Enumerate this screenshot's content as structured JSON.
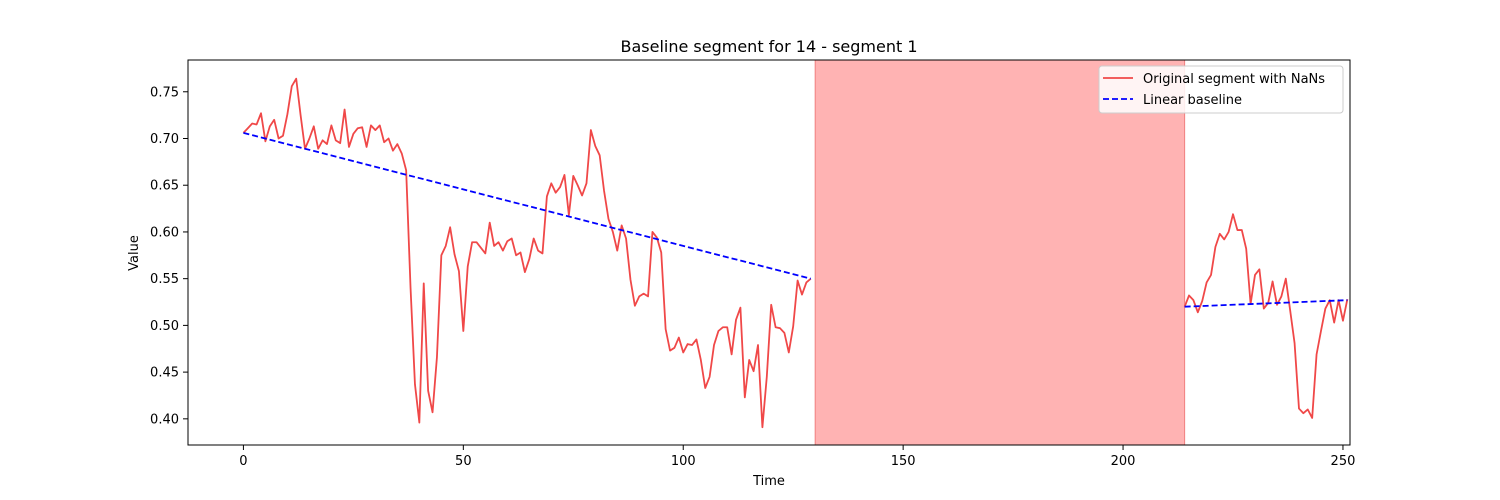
{
  "chart_data": {
    "type": "line",
    "title": "Baseline segment for 14 - segment 1",
    "xlabel": "Time",
    "ylabel": "Value",
    "xlim": [
      -12.6,
      251.6
    ],
    "ylim": [
      0.372,
      0.784
    ],
    "xticks": [
      0,
      50,
      100,
      150,
      200,
      250
    ],
    "yticks": [
      0.4,
      0.45,
      0.5,
      0.55,
      0.6,
      0.65,
      0.7,
      0.75
    ],
    "grid": false,
    "legend_position": "top-right",
    "shaded_region": {
      "x_start": 130,
      "x_end": 214,
      "color": "#ffb3b3"
    },
    "series": [
      {
        "name": "Original segment with NaNs",
        "color": "#f04848",
        "style": "solid",
        "segments": [
          [
            [
              0,
              0.706
            ],
            [
              1,
              0.711
            ],
            [
              2,
              0.716
            ],
            [
              3,
              0.715
            ],
            [
              4,
              0.727
            ],
            [
              5,
              0.697
            ],
            [
              6,
              0.713
            ],
            [
              7,
              0.72
            ],
            [
              8,
              0.7
            ],
            [
              9,
              0.703
            ],
            [
              10,
              0.726
            ],
            [
              11,
              0.756
            ],
            [
              12,
              0.764
            ],
            [
              13,
              0.725
            ],
            [
              14,
              0.689
            ],
            [
              15,
              0.7
            ],
            [
              16,
              0.713
            ],
            [
              17,
              0.689
            ],
            [
              18,
              0.698
            ],
            [
              19,
              0.694
            ],
            [
              20,
              0.714
            ],
            [
              21,
              0.698
            ],
            [
              22,
              0.695
            ],
            [
              23,
              0.731
            ],
            [
              24,
              0.691
            ],
            [
              25,
              0.705
            ],
            [
              26,
              0.711
            ],
            [
              27,
              0.712
            ],
            [
              28,
              0.691
            ],
            [
              29,
              0.714
            ],
            [
              30,
              0.709
            ],
            [
              31,
              0.714
            ],
            [
              32,
              0.696
            ],
            [
              33,
              0.7
            ],
            [
              34,
              0.687
            ],
            [
              35,
              0.694
            ],
            [
              36,
              0.684
            ],
            [
              37,
              0.666
            ],
            [
              38,
              0.54
            ],
            [
              39,
              0.437
            ],
            [
              40,
              0.396
            ],
            [
              41,
              0.545
            ],
            [
              42,
              0.43
            ],
            [
              43,
              0.407
            ],
            [
              44,
              0.466
            ],
            [
              45,
              0.575
            ],
            [
              46,
              0.585
            ],
            [
              47,
              0.605
            ],
            [
              48,
              0.576
            ],
            [
              49,
              0.558
            ],
            [
              50,
              0.494
            ],
            [
              51,
              0.563
            ],
            [
              52,
              0.589
            ],
            [
              53,
              0.589
            ],
            [
              54,
              0.583
            ],
            [
              55,
              0.577
            ],
            [
              56,
              0.61
            ],
            [
              57,
              0.585
            ],
            [
              58,
              0.589
            ],
            [
              59,
              0.58
            ],
            [
              60,
              0.59
            ],
            [
              61,
              0.593
            ],
            [
              62,
              0.575
            ],
            [
              63,
              0.578
            ],
            [
              64,
              0.557
            ],
            [
              65,
              0.571
            ],
            [
              66,
              0.593
            ],
            [
              67,
              0.58
            ],
            [
              68,
              0.577
            ],
            [
              69,
              0.638
            ],
            [
              70,
              0.652
            ],
            [
              71,
              0.642
            ],
            [
              72,
              0.648
            ],
            [
              73,
              0.661
            ],
            [
              74,
              0.618
            ],
            [
              75,
              0.66
            ],
            [
              76,
              0.65
            ],
            [
              77,
              0.639
            ],
            [
              78,
              0.652
            ],
            [
              79,
              0.709
            ],
            [
              80,
              0.692
            ],
            [
              81,
              0.682
            ],
            [
              82,
              0.644
            ],
            [
              83,
              0.614
            ],
            [
              84,
              0.6
            ],
            [
              85,
              0.58
            ],
            [
              86,
              0.607
            ],
            [
              87,
              0.593
            ],
            [
              88,
              0.549
            ],
            [
              89,
              0.521
            ],
            [
              90,
              0.531
            ],
            [
              91,
              0.534
            ],
            [
              92,
              0.531
            ],
            [
              93,
              0.6
            ],
            [
              94,
              0.594
            ],
            [
              95,
              0.578
            ],
            [
              96,
              0.496
            ],
            [
              97,
              0.473
            ],
            [
              98,
              0.476
            ],
            [
              99,
              0.487
            ],
            [
              100,
              0.471
            ],
            [
              101,
              0.48
            ],
            [
              102,
              0.479
            ],
            [
              103,
              0.485
            ],
            [
              104,
              0.463
            ],
            [
              105,
              0.433
            ],
            [
              106,
              0.445
            ],
            [
              107,
              0.479
            ],
            [
              108,
              0.494
            ],
            [
              109,
              0.498
            ],
            [
              110,
              0.498
            ],
            [
              111,
              0.469
            ],
            [
              112,
              0.506
            ],
            [
              113,
              0.519
            ],
            [
              114,
              0.423
            ],
            [
              115,
              0.463
            ],
            [
              116,
              0.451
            ],
            [
              117,
              0.479
            ],
            [
              118,
              0.391
            ],
            [
              119,
              0.445
            ],
            [
              120,
              0.522
            ],
            [
              121,
              0.498
            ],
            [
              122,
              0.497
            ],
            [
              123,
              0.492
            ],
            [
              124,
              0.471
            ],
            [
              125,
              0.499
            ],
            [
              126,
              0.548
            ],
            [
              127,
              0.533
            ],
            [
              128,
              0.546
            ],
            [
              129,
              0.55
            ]
          ],
          [
            [
              214,
              0.52
            ],
            [
              215,
              0.532
            ],
            [
              216,
              0.527
            ],
            [
              217,
              0.514
            ],
            [
              218,
              0.526
            ],
            [
              219,
              0.546
            ],
            [
              220,
              0.554
            ],
            [
              221,
              0.584
            ],
            [
              222,
              0.598
            ],
            [
              223,
              0.592
            ],
            [
              224,
              0.6
            ],
            [
              225,
              0.619
            ],
            [
              226,
              0.602
            ],
            [
              227,
              0.602
            ],
            [
              228,
              0.582
            ],
            [
              229,
              0.523
            ],
            [
              230,
              0.554
            ],
            [
              231,
              0.56
            ],
            [
              232,
              0.518
            ],
            [
              233,
              0.524
            ],
            [
              234,
              0.547
            ],
            [
              235,
              0.522
            ],
            [
              236,
              0.531
            ],
            [
              237,
              0.55
            ],
            [
              238,
              0.516
            ],
            [
              239,
              0.481
            ],
            [
              240,
              0.411
            ],
            [
              241,
              0.406
            ],
            [
              242,
              0.41
            ],
            [
              243,
              0.401
            ],
            [
              244,
              0.469
            ],
            [
              245,
              0.494
            ],
            [
              246,
              0.518
            ],
            [
              247,
              0.527
            ],
            [
              248,
              0.503
            ],
            [
              249,
              0.527
            ],
            [
              250,
              0.505
            ],
            [
              251,
              0.528
            ]
          ]
        ]
      },
      {
        "name": "Linear baseline",
        "color": "#0000ff",
        "style": "dashed",
        "segments": [
          [
            [
              0,
              0.706
            ],
            [
              129,
              0.55
            ]
          ],
          [
            [
              214,
              0.52
            ],
            [
              251,
              0.527
            ]
          ]
        ]
      }
    ]
  }
}
